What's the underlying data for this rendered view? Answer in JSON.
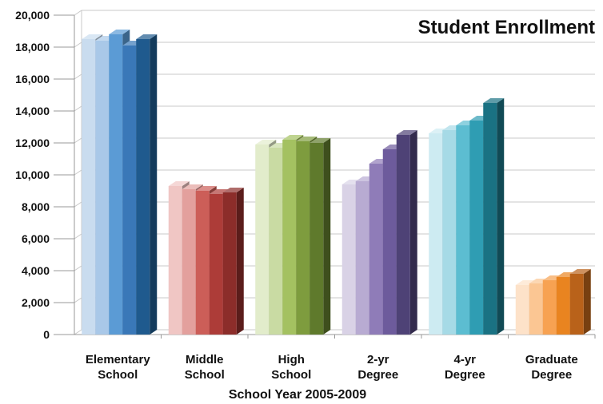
{
  "chart_data": {
    "type": "bar",
    "title": "Student Enrollment",
    "xlabel": "School Year 2005-2009",
    "ylabel": "",
    "ylim": [
      0,
      20000
    ],
    "yticks": [
      0,
      2000,
      4000,
      6000,
      8000,
      10000,
      12000,
      14000,
      16000,
      18000,
      20000
    ],
    "ytick_labels": [
      "0",
      "2,000",
      "4,000",
      "6,000",
      "8,000",
      "10,000",
      "12,000",
      "14,000",
      "16,000",
      "18,000",
      "20,000"
    ],
    "grid": true,
    "categories": [
      {
        "lines": [
          "Elementary",
          "School"
        ],
        "values": [
          18500,
          18400,
          18800,
          18100,
          18500
        ],
        "colors": [
          "#c9dcef",
          "#a9c8e8",
          "#5b9bd5",
          "#3a78b8",
          "#1f5a8e"
        ]
      },
      {
        "lines": [
          "Middle",
          "School"
        ],
        "values": [
          9300,
          9100,
          9000,
          8800,
          8900
        ],
        "colors": [
          "#f0c6c4",
          "#e3a09d",
          "#cc5e58",
          "#ad3c38",
          "#8c2d2a"
        ]
      },
      {
        "lines": [
          "High",
          "School"
        ],
        "values": [
          11900,
          11700,
          12200,
          12100,
          12000
        ],
        "colors": [
          "#e2eccb",
          "#c9dba3",
          "#a4c161",
          "#7e9c3e",
          "#5f7a2c"
        ]
      },
      {
        "lines": [
          "2-yr",
          "Degree"
        ],
        "values": [
          9400,
          9600,
          10700,
          11600,
          12500
        ],
        "colors": [
          "#d9d2e6",
          "#b8abd2",
          "#8f7cb8",
          "#6d5b9c",
          "#4e4276"
        ]
      },
      {
        "lines": [
          "4-yr",
          "Degree"
        ],
        "values": [
          12600,
          12800,
          13100,
          13400,
          14500
        ],
        "colors": [
          "#cdebf2",
          "#a6dae6",
          "#5cbdd1",
          "#2f9db3",
          "#1a7283"
        ]
      },
      {
        "lines": [
          "Graduate",
          "Degree"
        ],
        "values": [
          3100,
          3200,
          3400,
          3600,
          3800
        ],
        "colors": [
          "#fde2c9",
          "#fbc693",
          "#f7a252",
          "#e98420",
          "#b9621a"
        ]
      }
    ]
  }
}
